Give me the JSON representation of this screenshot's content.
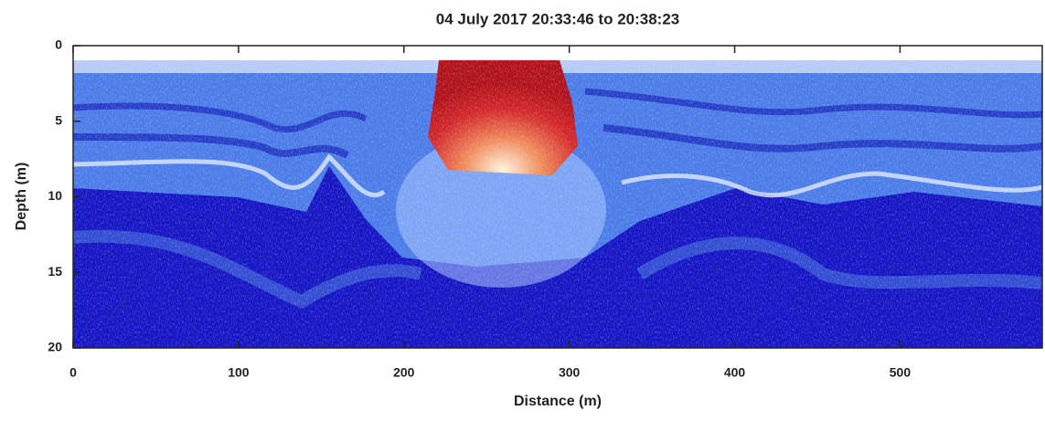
{
  "chart_data": {
    "type": "echogram",
    "title": "04 July 2017 20:33:46 to 20:38:23",
    "x_label": "Distance (m)",
    "y_label": "Depth (m)",
    "xlim": [
      0,
      586
    ],
    "xticks": [
      0,
      100,
      200,
      300,
      400,
      500
    ],
    "ylim": [
      0,
      20
    ],
    "yticks": [
      0,
      5,
      10,
      15,
      20
    ],
    "yreverse": true
  }
}
